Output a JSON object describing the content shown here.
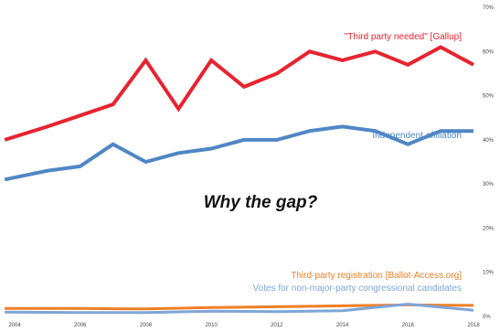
{
  "chart_data": {
    "type": "line",
    "x_labels": [
      "2004",
      "2006",
      "2008",
      "2010",
      "2012",
      "2014",
      "2016",
      "2018"
    ],
    "y_labels": [
      "0%",
      "10%",
      "20%",
      "30%",
      "40%",
      "50%",
      "60%",
      "70%"
    ],
    "ylim": [
      0,
      70
    ],
    "xlim": [
      2004,
      2018
    ],
    "grid": false,
    "annotation": "Why the gap?",
    "series": [
      {
        "name": "\"Third party needed\" [Gallup]",
        "color": "#e8232f",
        "x": [
          2003.7,
          2005,
          2006,
          2007,
          2008,
          2009,
          2010,
          2011,
          2012,
          2013,
          2014,
          2015,
          2016,
          2017,
          2018
        ],
        "y": [
          40,
          43,
          45.5,
          48,
          58,
          47,
          58,
          52,
          55,
          60,
          58,
          60,
          57,
          61,
          57
        ]
      },
      {
        "name": "Independent affiliation",
        "color": "#4f86c6",
        "x": [
          2003.7,
          2005,
          2006,
          2007,
          2008,
          2009,
          2010,
          2011,
          2012,
          2013,
          2014,
          2015,
          2016,
          2017,
          2018
        ],
        "y": [
          31,
          33,
          34,
          39,
          35,
          37,
          38,
          40,
          40,
          42,
          43,
          42,
          39,
          42,
          42
        ]
      },
      {
        "name": "Third-party registration  [Ballot-Access.org]",
        "color": "#f07f26",
        "x": [
          2003.7,
          2006,
          2008,
          2010,
          2012,
          2014,
          2016,
          2018
        ],
        "y": [
          1.8,
          1.8,
          1.7,
          2.0,
          2.2,
          2.4,
          2.6,
          2.5
        ]
      },
      {
        "name": "Votes for non-major-party congressional candidates",
        "color": "#7ea6d8",
        "x": [
          2003.7,
          2006,
          2008,
          2010,
          2012,
          2014,
          2016,
          2018
        ],
        "y": [
          1.0,
          0.9,
          0.9,
          1.2,
          1.1,
          1.3,
          2.8,
          1.4
        ]
      }
    ]
  }
}
